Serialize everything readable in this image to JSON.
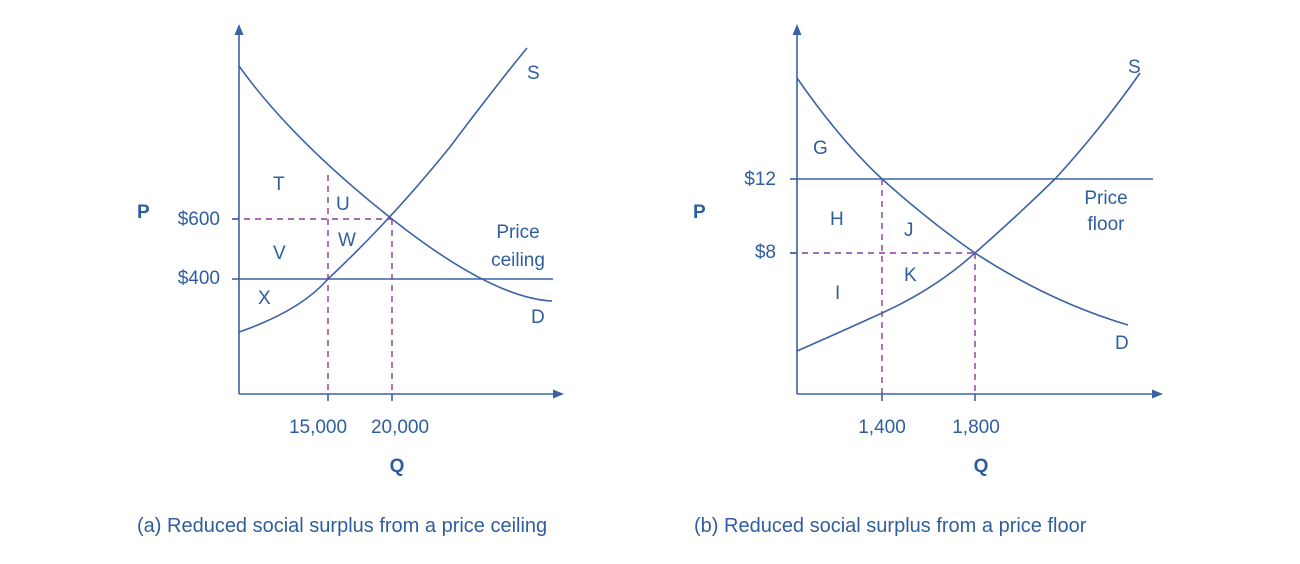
{
  "panel_a": {
    "caption": "(a) Reduced social surplus from a price ceiling",
    "y_axis_title": "P",
    "x_axis_title": "Q",
    "price_high": "$600",
    "price_low": "$400",
    "qty_low": "15,000",
    "qty_high": "20,000",
    "supply_label": "S",
    "demand_label": "D",
    "policy_label_line1": "Price",
    "policy_label_line2": "ceiling",
    "areas": {
      "t": "T",
      "u": "U",
      "v": "V",
      "w": "W",
      "x": "X"
    }
  },
  "panel_b": {
    "caption": "(b) Reduced social surplus from a price floor",
    "y_axis_title": "P",
    "x_axis_title": "Q",
    "price_high": "$12",
    "price_low": "$8",
    "qty_low": "1,400",
    "qty_high": "1,800",
    "supply_label": "S",
    "demand_label": "D",
    "policy_label_line1": "Price",
    "policy_label_line2": "floor",
    "areas": {
      "g": "G",
      "h": "H",
      "i": "I",
      "j": "J",
      "k": "K"
    }
  },
  "colors": {
    "curve": "#3b63a3",
    "text": "#2f5e9e",
    "guide": "#8a3b9a"
  }
}
